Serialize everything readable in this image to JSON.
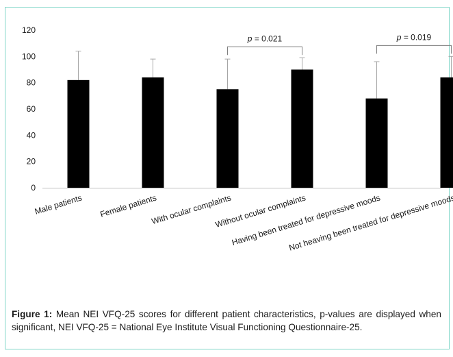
{
  "caption": {
    "label": "Figure 1:",
    "text": "Mean NEI VFQ-25 scores for different patient characteristics, p-values are displayed when significant, NEI VFQ-25 = National Eye Institute Visual Functioning Questionnaire-25."
  },
  "chart_data": {
    "type": "bar",
    "title": "",
    "xlabel": "",
    "ylabel": "",
    "ylim": [
      0,
      120
    ],
    "yticks": [
      "0",
      "20",
      "40",
      "60",
      "80",
      "100",
      "120"
    ],
    "grid": false,
    "bar_color": "#000000",
    "categories": [
      "Male patients",
      "Female patients",
      "With ocular complaints",
      "Without ocular complaints",
      "Having been treated for depressive moods",
      "Not heaving been treated for depressive moods"
    ],
    "values": [
      82,
      84,
      75,
      90,
      68,
      84
    ],
    "error_upper": [
      104,
      98,
      98,
      99,
      96,
      100
    ],
    "annotations": [
      {
        "text_prefix": "p",
        "text_value": " = 0.021",
        "from_category": 2,
        "to_category": 3
      },
      {
        "text_prefix": "p",
        "text_value": " = 0.019",
        "from_category": 4,
        "to_category": 5
      }
    ]
  }
}
